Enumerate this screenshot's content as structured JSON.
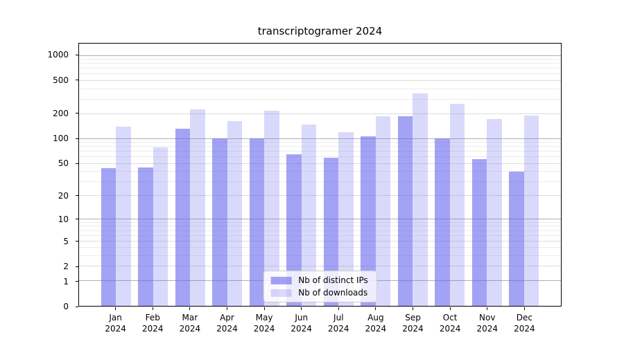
{
  "title": "transcriptogramer 2024",
  "chart_data": {
    "type": "bar",
    "title": "transcriptogramer 2024",
    "x_categories": [
      "Jan",
      "Feb",
      "Mar",
      "Apr",
      "May",
      "Jun",
      "Jul",
      "Aug",
      "Sep",
      "Oct",
      "Nov",
      "Dec"
    ],
    "x_year": "2024",
    "series": [
      {
        "name": "Nb of distinct IPs",
        "color": "rgba(102,102,238,0.6)",
        "values": [
          44,
          45,
          132,
          100,
          101,
          64,
          59,
          107,
          185,
          101,
          56,
          40
        ]
      },
      {
        "name": "Nb of downloads",
        "color": "rgba(102,102,238,0.25)",
        "values": [
          140,
          79,
          226,
          163,
          218,
          148,
          119,
          188,
          348,
          265,
          174,
          191
        ]
      }
    ],
    "y_scale": "log1p",
    "y_ticks": [
      0,
      1,
      2,
      5,
      10,
      20,
      50,
      100,
      200,
      500,
      1000
    ],
    "y_max": 1390,
    "grid": true,
    "gridlines": {
      "major": [
        1,
        10,
        100,
        1000
      ],
      "labeled": [
        2,
        5,
        20,
        50,
        200,
        500
      ],
      "minor": [
        3,
        4,
        6,
        7,
        8,
        9,
        30,
        40,
        60,
        70,
        80,
        90,
        300,
        400,
        600,
        700,
        800,
        900
      ]
    },
    "legend_position": "lower center",
    "colors": {
      "bar_dark": "rgba(102,102,238,0.6)",
      "bar_light": "rgba(102,102,238,0.25)",
      "grid_major": "#b0b0b0",
      "grid_labeled": "#dcdcdc",
      "grid_minor": "#ececec",
      "axis": "#000000",
      "text": "#000000",
      "legend_border": "#cccccc",
      "legend_bg": "rgba(255,255,255,0.8)"
    }
  }
}
